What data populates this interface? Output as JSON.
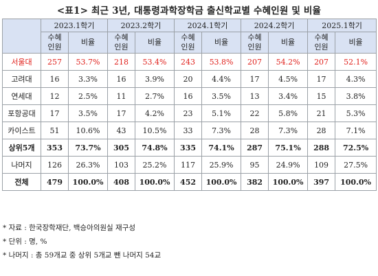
{
  "title": "<표1> 최근 3년, 대통령과학장학금 출신학교별 수혜인원 및 비율",
  "table": {
    "semesters": [
      "2023.1학기",
      "2023.2학기",
      "2024.1학기",
      "2024.2학기",
      "2025.1학기"
    ],
    "sub_headers": {
      "count": "수혜\n인원",
      "ratio": "비율"
    },
    "rows": [
      {
        "label": "서울대",
        "style": "red",
        "values": [
          "257",
          "53.7%",
          "218",
          "53.4%",
          "243",
          "53.8%",
          "207",
          "54.2%",
          "207",
          "52.1%"
        ]
      },
      {
        "label": "고려대",
        "style": "",
        "values": [
          "16",
          "3.3%",
          "16",
          "3.9%",
          "20",
          "4.4%",
          "17",
          "4.5%",
          "17",
          "4.3%"
        ]
      },
      {
        "label": "연세대",
        "style": "",
        "values": [
          "12",
          "2.5%",
          "11",
          "2.7%",
          "16",
          "3.5%",
          "13",
          "3.4%",
          "15",
          "3.8%"
        ]
      },
      {
        "label": "포항공대",
        "style": "",
        "values": [
          "17",
          "3.5%",
          "17",
          "4.2%",
          "23",
          "5.1%",
          "22",
          "5.8%",
          "21",
          "5.3%"
        ]
      },
      {
        "label": "카이스트",
        "style": "",
        "values": [
          "51",
          "10.6%",
          "43",
          "10.5%",
          "33",
          "7.3%",
          "28",
          "7.3%",
          "28",
          "7.1%"
        ]
      },
      {
        "label": "상위5개",
        "style": "bold",
        "values": [
          "353",
          "73.7%",
          "305",
          "74.8%",
          "335",
          "74.1%",
          "287",
          "75.1%",
          "288",
          "72.5%"
        ]
      },
      {
        "label": "나머지",
        "style": "",
        "values": [
          "126",
          "26.3%",
          "103",
          "25.2%",
          "117",
          "25.9%",
          "95",
          "24.9%",
          "109",
          "27.5%"
        ]
      },
      {
        "label": "전체",
        "style": "bold",
        "values": [
          "479",
          "100.0%",
          "408",
          "100.0%",
          "452",
          "100.0%",
          "382",
          "100.0%",
          "397",
          "100.0%"
        ]
      }
    ]
  },
  "notes": [
    "* 자료 : 한국장학재단, 백승아의원실 재구성",
    "* 단위 : 명, %",
    "* 나머지 : 총 59개교 중 상위 5개교 뺀 나머지 54교"
  ],
  "colors": {
    "header_bg": "#d9e2f3",
    "highlight_text": "#e0201b",
    "border": "#9aa0a6"
  }
}
